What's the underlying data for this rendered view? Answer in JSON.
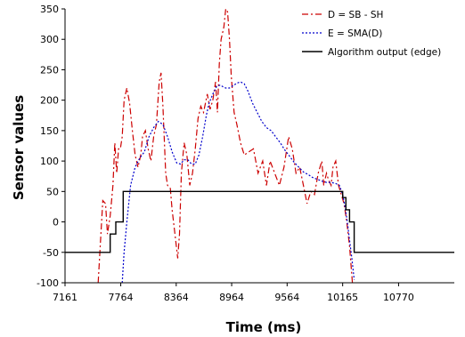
{
  "chart_data": {
    "type": "line",
    "xlabel": "Time (ms)",
    "ylabel": "Sensor values",
    "xlim": [
      7161,
      11373
    ],
    "ylim": [
      -100,
      350
    ],
    "x_ticks": [
      "7161",
      "7764",
      "8364",
      "8964",
      "9564",
      "10165",
      "10770"
    ],
    "y_ticks": [
      "-100",
      "-50",
      "0",
      "50",
      "100",
      "150",
      "200",
      "250",
      "300",
      "350"
    ],
    "legend_position": "top-right",
    "grid": false,
    "series": [
      {
        "name": "D = SB - SH",
        "color": "#cc0000",
        "style": "dash-dot",
        "points": [
          [
            7520,
            -100
          ],
          [
            7570,
            35
          ],
          [
            7600,
            30
          ],
          [
            7620,
            -20
          ],
          [
            7650,
            10
          ],
          [
            7680,
            60
          ],
          [
            7700,
            130
          ],
          [
            7720,
            80
          ],
          [
            7740,
            120
          ],
          [
            7760,
            120
          ],
          [
            7780,
            140
          ],
          [
            7800,
            200
          ],
          [
            7830,
            220
          ],
          [
            7860,
            195
          ],
          [
            7890,
            150
          ],
          [
            7920,
            110
          ],
          [
            7950,
            90
          ],
          [
            7980,
            110
          ],
          [
            8000,
            140
          ],
          [
            8030,
            150
          ],
          [
            8060,
            120
          ],
          [
            8090,
            100
          ],
          [
            8120,
            140
          ],
          [
            8150,
            160
          ],
          [
            8180,
            230
          ],
          [
            8200,
            245
          ],
          [
            8220,
            190
          ],
          [
            8250,
            80
          ],
          [
            8270,
            60
          ],
          [
            8300,
            55
          ],
          [
            8320,
            20
          ],
          [
            8350,
            -20
          ],
          [
            8380,
            -60
          ],
          [
            8400,
            -20
          ],
          [
            8420,
            80
          ],
          [
            8450,
            130
          ],
          [
            8480,
            110
          ],
          [
            8510,
            60
          ],
          [
            8540,
            80
          ],
          [
            8570,
            120
          ],
          [
            8600,
            170
          ],
          [
            8630,
            190
          ],
          [
            8660,
            180
          ],
          [
            8700,
            210
          ],
          [
            8730,
            185
          ],
          [
            8760,
            200
          ],
          [
            8790,
            230
          ],
          [
            8810,
            180
          ],
          [
            8830,
            260
          ],
          [
            8850,
            300
          ],
          [
            8880,
            320
          ],
          [
            8900,
            350
          ],
          [
            8920,
            345
          ],
          [
            8940,
            300
          ],
          [
            8960,
            240
          ],
          [
            8990,
            180
          ],
          [
            9020,
            160
          ],
          [
            9060,
            130
          ],
          [
            9100,
            110
          ],
          [
            9150,
            115
          ],
          [
            9200,
            120
          ],
          [
            9250,
            80
          ],
          [
            9300,
            100
          ],
          [
            9340,
            60
          ],
          [
            9380,
            100
          ],
          [
            9430,
            80
          ],
          [
            9480,
            60
          ],
          [
            9530,
            90
          ],
          [
            9580,
            140
          ],
          [
            9620,
            120
          ],
          [
            9660,
            80
          ],
          [
            9700,
            90
          ],
          [
            9740,
            60
          ],
          [
            9780,
            30
          ],
          [
            9820,
            50
          ],
          [
            9860,
            45
          ],
          [
            9900,
            80
          ],
          [
            9940,
            100
          ],
          [
            9960,
            60
          ],
          [
            9990,
            80
          ],
          [
            10010,
            70
          ],
          [
            10040,
            60
          ],
          [
            10060,
            90
          ],
          [
            10090,
            100
          ],
          [
            10120,
            60
          ],
          [
            10150,
            45
          ],
          [
            10180,
            30
          ],
          [
            10210,
            0
          ],
          [
            10240,
            -40
          ],
          [
            10270,
            -100
          ]
        ]
      },
      {
        "name": "E = SMA(D)",
        "color": "#0000cc",
        "style": "dotted",
        "points": [
          [
            7780,
            -100
          ],
          [
            7800,
            -50
          ],
          [
            7830,
            0
          ],
          [
            7870,
            60
          ],
          [
            7920,
            90
          ],
          [
            7970,
            105
          ],
          [
            8020,
            115
          ],
          [
            8070,
            140
          ],
          [
            8120,
            155
          ],
          [
            8170,
            165
          ],
          [
            8220,
            160
          ],
          [
            8270,
            140
          ],
          [
            8320,
            115
          ],
          [
            8370,
            97
          ],
          [
            8410,
            95
          ],
          [
            8450,
            102
          ],
          [
            8490,
            102
          ],
          [
            8530,
            95
          ],
          [
            8570,
            95
          ],
          [
            8610,
            110
          ],
          [
            8650,
            140
          ],
          [
            8690,
            175
          ],
          [
            8720,
            195
          ],
          [
            8760,
            210
          ],
          [
            8800,
            222
          ],
          [
            8840,
            225
          ],
          [
            8870,
            222
          ],
          [
            8900,
            220
          ],
          [
            8940,
            220
          ],
          [
            8990,
            225
          ],
          [
            9020,
            228
          ],
          [
            9060,
            230
          ],
          [
            9100,
            227
          ],
          [
            9140,
            215
          ],
          [
            9190,
            195
          ],
          [
            9240,
            180
          ],
          [
            9290,
            165
          ],
          [
            9340,
            155
          ],
          [
            9390,
            150
          ],
          [
            9440,
            140
          ],
          [
            9490,
            130
          ],
          [
            9540,
            118
          ],
          [
            9590,
            108
          ],
          [
            9640,
            98
          ],
          [
            9690,
            90
          ],
          [
            9740,
            82
          ],
          [
            9790,
            78
          ],
          [
            9840,
            73
          ],
          [
            9890,
            70
          ],
          [
            9940,
            67
          ],
          [
            9990,
            65
          ],
          [
            10040,
            65
          ],
          [
            10090,
            63
          ],
          [
            10130,
            60
          ],
          [
            10165,
            45
          ],
          [
            10190,
            25
          ],
          [
            10215,
            0
          ],
          [
            10240,
            -30
          ],
          [
            10265,
            -60
          ],
          [
            10290,
            -95
          ]
        ]
      },
      {
        "name": "Algorithm output (edge)",
        "color": "#000000",
        "style": "solid",
        "points": [
          [
            7161,
            -50
          ],
          [
            7640,
            -50
          ],
          [
            7640,
            -50
          ],
          [
            7650,
            -50
          ],
          [
            7650,
            -20
          ],
          [
            7710,
            -20
          ],
          [
            7710,
            0
          ],
          [
            7790,
            0
          ],
          [
            7790,
            50
          ],
          [
            10165,
            50
          ],
          [
            10165,
            40
          ],
          [
            10200,
            40
          ],
          [
            10200,
            20
          ],
          [
            10240,
            20
          ],
          [
            10240,
            0
          ],
          [
            10290,
            0
          ],
          [
            10290,
            -50
          ],
          [
            11373,
            -50
          ]
        ]
      }
    ]
  }
}
